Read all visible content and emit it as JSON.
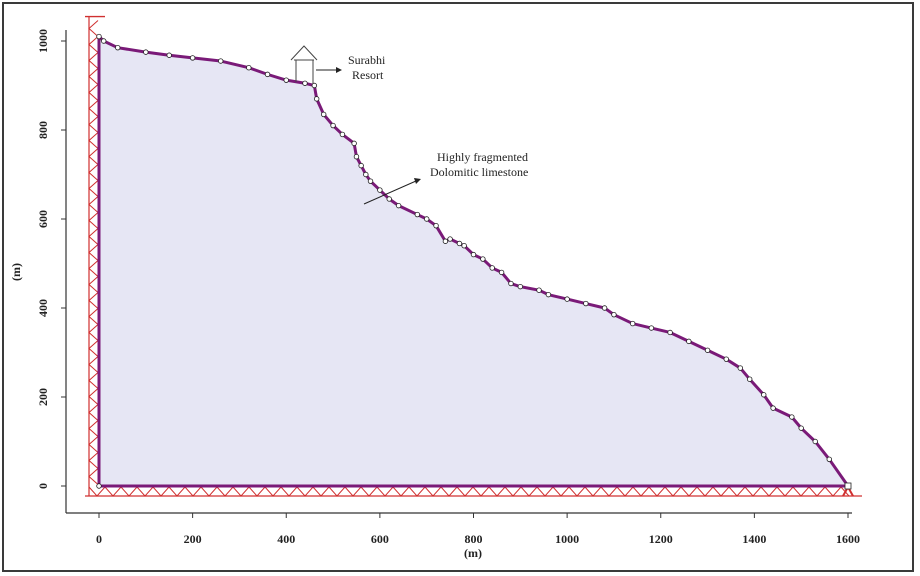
{
  "chart_data": {
    "type": "area",
    "xlabel": "(m)",
    "ylabel": "(m)",
    "xlim": [
      0,
      1600
    ],
    "ylim": [
      0,
      1000
    ],
    "x_ticks": [
      0,
      200,
      400,
      600,
      800,
      1000,
      1200,
      1400,
      1600
    ],
    "y_ticks": [
      0,
      200,
      400,
      600,
      800,
      1000
    ],
    "x_tick_labels": [
      "0",
      "200",
      "400",
      "600",
      "800",
      "1000",
      "1200",
      "1400",
      "1600"
    ],
    "y_tick_labels": [
      "0",
      "200",
      "400",
      "600",
      "800",
      "1000"
    ],
    "slope_profile": {
      "x": [
        0,
        10,
        40,
        100,
        150,
        200,
        260,
        320,
        360,
        400,
        440,
        460,
        465,
        480,
        500,
        520,
        545,
        550,
        560,
        570,
        580,
        600,
        620,
        640,
        680,
        700,
        720,
        740,
        750,
        770,
        780,
        800,
        820,
        840,
        860,
        880,
        900,
        940,
        960,
        1000,
        1040,
        1080,
        1100,
        1140,
        1180,
        1220,
        1260,
        1300,
        1340,
        1370,
        1390,
        1420,
        1440,
        1480,
        1500,
        1530,
        1560,
        1600
      ],
      "y": [
        1010,
        1000,
        985,
        975,
        968,
        962,
        955,
        940,
        925,
        912,
        905,
        900,
        870,
        835,
        810,
        790,
        770,
        740,
        720,
        700,
        685,
        665,
        645,
        630,
        610,
        600,
        585,
        550,
        555,
        545,
        540,
        520,
        510,
        490,
        480,
        455,
        448,
        440,
        430,
        420,
        410,
        400,
        385,
        365,
        355,
        345,
        325,
        305,
        285,
        265,
        240,
        205,
        175,
        155,
        130,
        100,
        60,
        0
      ]
    },
    "fill_color": "#e6e6f4",
    "profile_color": "#7a1a78",
    "support_color": "#d03030",
    "grid": false,
    "annotations": [
      {
        "text_lines": [
          "Surabhi",
          "Resort"
        ],
        "x": 470,
        "y": 930
      },
      {
        "text_lines": [
          "Highly fragmented",
          "Dolomitic limestone"
        ],
        "x": 580,
        "y": 650
      }
    ]
  }
}
